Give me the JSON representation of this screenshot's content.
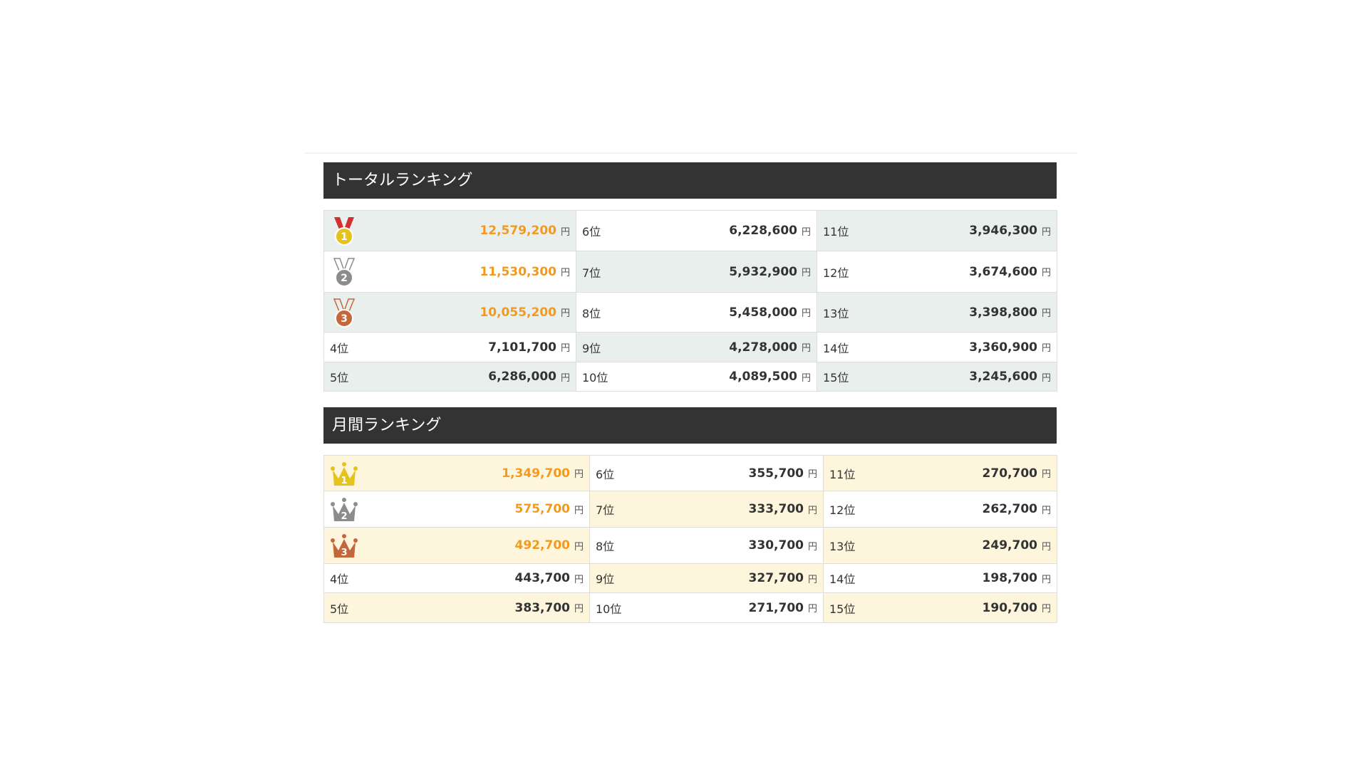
{
  "sections": [
    {
      "title": "トータルランキング",
      "icon": "medal",
      "cols": [
        354,
        338,
        337
      ],
      "heights": [
        57,
        58,
        56,
        42,
        41
      ],
      "shade": "#e9efed",
      "rows": [
        [
          {
            "badge": "1",
            "amount": "12,579,200",
            "unit": "円"
          },
          {
            "rank": "6位",
            "amount": "6,228,600",
            "unit": "円"
          },
          {
            "rank": "11位",
            "amount": "3,946,300",
            "unit": "円"
          }
        ],
        [
          {
            "badge": "2",
            "amount": "11,530,300",
            "unit": "円"
          },
          {
            "rank": "7位",
            "amount": "5,932,900",
            "unit": "円"
          },
          {
            "rank": "12位",
            "amount": "3,674,600",
            "unit": "円"
          }
        ],
        [
          {
            "badge": "3",
            "amount": "10,055,200",
            "unit": "円"
          },
          {
            "rank": "8位",
            "amount": "5,458,000",
            "unit": "円"
          },
          {
            "rank": "13位",
            "amount": "3,398,800",
            "unit": "円"
          }
        ],
        [
          {
            "rank": "4位",
            "amount": "7,101,700",
            "unit": "円"
          },
          {
            "rank": "9位",
            "amount": "4,278,000",
            "unit": "円"
          },
          {
            "rank": "14位",
            "amount": "3,360,900",
            "unit": "円"
          }
        ],
        [
          {
            "rank": "5位",
            "amount": "6,286,000",
            "unit": "円"
          },
          {
            "rank": "10位",
            "amount": "4,089,500",
            "unit": "円"
          },
          {
            "rank": "15位",
            "amount": "3,245,600",
            "unit": "円"
          }
        ]
      ]
    },
    {
      "title": "月間ランキング",
      "icon": "crown",
      "cols": [
        373,
        328,
        328
      ],
      "heights": [
        50,
        51,
        51,
        41,
        42
      ],
      "shade": "#fdf6dd",
      "rows": [
        [
          {
            "badge": "1",
            "amount": "1,349,700",
            "unit": "円"
          },
          {
            "rank": "6位",
            "amount": "355,700",
            "unit": "円"
          },
          {
            "rank": "11位",
            "amount": "270,700",
            "unit": "円"
          }
        ],
        [
          {
            "badge": "2",
            "amount": "575,700",
            "unit": "円"
          },
          {
            "rank": "7位",
            "amount": "333,700",
            "unit": "円"
          },
          {
            "rank": "12位",
            "amount": "262,700",
            "unit": "円"
          }
        ],
        [
          {
            "badge": "3",
            "amount": "492,700",
            "unit": "円"
          },
          {
            "rank": "8位",
            "amount": "330,700",
            "unit": "円"
          },
          {
            "rank": "13位",
            "amount": "249,700",
            "unit": "円"
          }
        ],
        [
          {
            "rank": "4位",
            "amount": "443,700",
            "unit": "円"
          },
          {
            "rank": "9位",
            "amount": "327,700",
            "unit": "円"
          },
          {
            "rank": "14位",
            "amount": "198,700",
            "unit": "円"
          }
        ],
        [
          {
            "rank": "5位",
            "amount": "383,700",
            "unit": "円"
          },
          {
            "rank": "10位",
            "amount": "271,700",
            "unit": "円"
          },
          {
            "rank": "15位",
            "amount": "190,700",
            "unit": "円"
          }
        ]
      ]
    }
  ]
}
